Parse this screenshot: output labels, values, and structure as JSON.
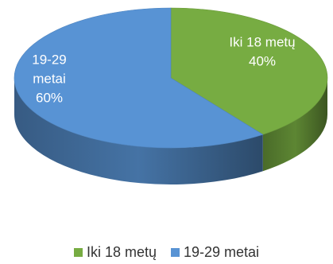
{
  "chart_data": {
    "type": "pie",
    "style": "3d",
    "categories": [
      "Iki 18 metų",
      "19-29 metai"
    ],
    "values": [
      40,
      60
    ],
    "unit": "%",
    "data_labels": [
      [
        "Iki 18 metų",
        "40%"
      ],
      [
        "19-29",
        "metai",
        "60%"
      ]
    ],
    "colors": [
      "#77ac42",
      "#5893d4"
    ],
    "label_color": "#ffffff",
    "legend_position": "bottom"
  }
}
